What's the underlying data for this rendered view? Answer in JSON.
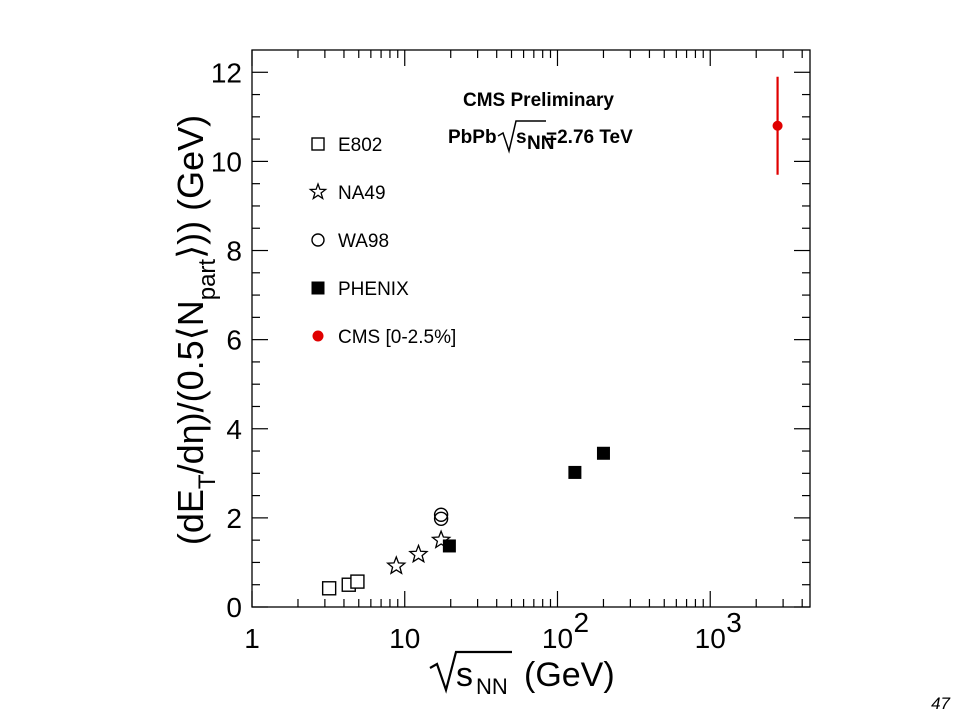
{
  "chart_data": {
    "type": "scatter",
    "annotation": {
      "line1": "CMS Preliminary",
      "system": "PbPb",
      "sqrt_s": "s",
      "sqrt_s_sub": "NN",
      "energy": "=2.76 TeV"
    },
    "ylabel": {
      "p1": "(dE",
      "p1_sub": "T",
      "p2": "/d",
      "eta": "η",
      "p3": ")/(0.5",
      "p4": "N",
      "p4_sub": "part",
      "p5": ")) (GeV)"
    },
    "xlabel": {
      "s": "s",
      "sub": "NN",
      "unit": "(GeV)"
    },
    "x_scale": "log",
    "xlim": [
      1,
      4500
    ],
    "ylim": [
      0,
      12.5
    ],
    "x_ticks": [
      {
        "value": 1,
        "label": "1",
        "sup": ""
      },
      {
        "value": 10,
        "label": "10",
        "sup": ""
      },
      {
        "value": 100,
        "label": "10",
        "sup": "2"
      },
      {
        "value": 1000,
        "label": "10",
        "sup": "3"
      }
    ],
    "y_ticks": [
      "0",
      "2",
      "4",
      "6",
      "8",
      "10",
      "12"
    ],
    "legend_position": "top-left",
    "grid": false,
    "series": [
      {
        "name": "E802",
        "marker": "open-square",
        "color": "#000000",
        "points": [
          [
            3.2,
            0.42
          ],
          [
            4.3,
            0.5
          ],
          [
            4.9,
            0.57
          ]
        ]
      },
      {
        "name": "NA49",
        "marker": "open-star",
        "color": "#000000",
        "points": [
          [
            8.8,
            0.92
          ],
          [
            12.3,
            1.18
          ],
          [
            17.3,
            1.5
          ]
        ]
      },
      {
        "name": "WA98",
        "marker": "open-circle",
        "color": "#000000",
        "points": [
          [
            17.3,
            2.07
          ],
          [
            17.3,
            1.98
          ]
        ]
      },
      {
        "name": "PHENIX",
        "marker": "filled-square",
        "color": "#000000",
        "points": [
          [
            19.6,
            1.37
          ],
          [
            130,
            3.02
          ],
          [
            200,
            3.45
          ]
        ]
      },
      {
        "name": "CMS [0-2.5%]",
        "marker": "filled-circle",
        "color": "#e00000",
        "points": [
          [
            2760,
            10.8
          ]
        ],
        "errors": [
          1.1
        ]
      }
    ]
  },
  "page_number": "47"
}
